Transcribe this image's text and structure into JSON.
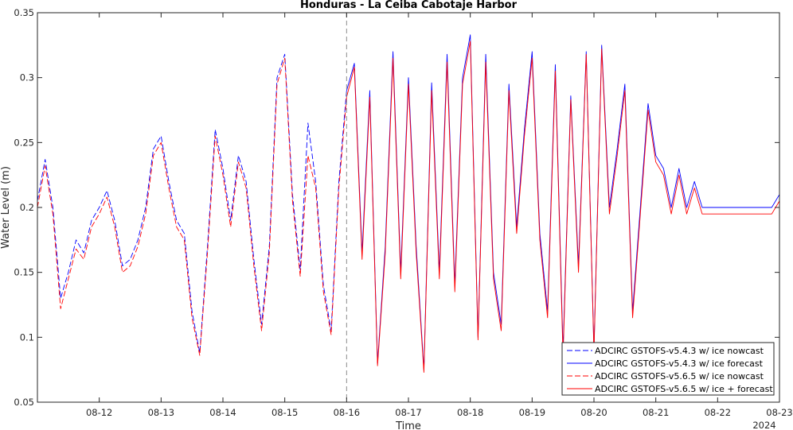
{
  "chart_data": {
    "type": "line",
    "title": "Honduras - La Ceiba Cabotaje Harbor",
    "xlabel": "Time",
    "ylabel": "Water Level (m)",
    "x_start": "2024-08-11 00:00",
    "x_end": "2024-08-23 00:00",
    "xlim": [
      "2024-08-11",
      "2024-08-23"
    ],
    "ylim": [
      0.05,
      0.35
    ],
    "x_ticks": [
      {
        "date": "2024-08-12",
        "label": "08-12"
      },
      {
        "date": "2024-08-13",
        "label": "08-13"
      },
      {
        "date": "2024-08-14",
        "label": "08-14"
      },
      {
        "date": "2024-08-15",
        "label": "08-15"
      },
      {
        "date": "2024-08-16",
        "label": "08-16"
      },
      {
        "date": "2024-08-17",
        "label": "08-17"
      },
      {
        "date": "2024-08-18",
        "label": "08-18"
      },
      {
        "date": "2024-08-19",
        "label": "08-19"
      },
      {
        "date": "2024-08-20",
        "label": "08-20"
      },
      {
        "date": "2024-08-21",
        "label": "08-21"
      },
      {
        "date": "2024-08-22",
        "label": "08-22"
      },
      {
        "date": "2024-08-23",
        "label": "08-23"
      }
    ],
    "x_year_label": "2024",
    "y_ticks": [
      0.05,
      0.1,
      0.15,
      0.2,
      0.25,
      0.3,
      0.35
    ],
    "y_tick_labels": [
      "0.05",
      "0.1",
      "0.15",
      "0.2",
      "0.25",
      "0.3",
      "0.35"
    ],
    "grid": false,
    "legend_location": "bottom-right",
    "forecast_start_marker": "2024-08-16 00:00",
    "series": [
      {
        "name": "ADCIRC GSTOFS-v5.4.3 w/ ice nowcast",
        "color": "#0000ff",
        "style": "dashed",
        "x": [
          "2024-08-11 00:00",
          "2024-08-11 03:00",
          "2024-08-11 06:00",
          "2024-08-11 09:00",
          "2024-08-11 12:00",
          "2024-08-11 15:00",
          "2024-08-11 18:00",
          "2024-08-11 21:00",
          "2024-08-12 00:00",
          "2024-08-12 03:00",
          "2024-08-12 06:00",
          "2024-08-12 09:00",
          "2024-08-12 12:00",
          "2024-08-12 15:00",
          "2024-08-12 18:00",
          "2024-08-12 21:00",
          "2024-08-13 00:00",
          "2024-08-13 03:00",
          "2024-08-13 06:00",
          "2024-08-13 09:00",
          "2024-08-13 12:00",
          "2024-08-13 15:00",
          "2024-08-13 18:00",
          "2024-08-13 21:00",
          "2024-08-14 00:00",
          "2024-08-14 03:00",
          "2024-08-14 06:00",
          "2024-08-14 09:00",
          "2024-08-14 12:00",
          "2024-08-14 15:00",
          "2024-08-14 18:00",
          "2024-08-14 21:00",
          "2024-08-15 00:00",
          "2024-08-15 03:00",
          "2024-08-15 06:00",
          "2024-08-15 09:00",
          "2024-08-15 12:00",
          "2024-08-15 15:00",
          "2024-08-15 18:00",
          "2024-08-15 21:00",
          "2024-08-16 00:00"
        ],
        "y": [
          0.205,
          0.237,
          0.2,
          0.13,
          0.15,
          0.175,
          0.165,
          0.19,
          0.2,
          0.213,
          0.19,
          0.155,
          0.16,
          0.175,
          0.2,
          0.245,
          0.255,
          0.22,
          0.19,
          0.18,
          0.12,
          0.088,
          0.17,
          0.26,
          0.23,
          0.19,
          0.24,
          0.22,
          0.16,
          0.11,
          0.17,
          0.3,
          0.318,
          0.21,
          0.152,
          0.265,
          0.22,
          0.14,
          0.105,
          0.22,
          0.29
        ]
      },
      {
        "name": "ADCIRC GSTOFS-v5.4.3 w/ ice forecast",
        "color": "#0000ff",
        "style": "solid",
        "x": [
          "2024-08-16 00:00",
          "2024-08-16 03:00",
          "2024-08-16 06:00",
          "2024-08-16 09:00",
          "2024-08-16 12:00",
          "2024-08-16 15:00",
          "2024-08-16 18:00",
          "2024-08-16 21:00",
          "2024-08-17 00:00",
          "2024-08-17 03:00",
          "2024-08-17 06:00",
          "2024-08-17 09:00",
          "2024-08-17 12:00",
          "2024-08-17 15:00",
          "2024-08-17 18:00",
          "2024-08-17 21:00",
          "2024-08-18 00:00",
          "2024-08-18 03:00",
          "2024-08-18 06:00",
          "2024-08-18 09:00",
          "2024-08-18 12:00",
          "2024-08-18 15:00",
          "2024-08-18 18:00",
          "2024-08-18 21:00",
          "2024-08-19 00:00",
          "2024-08-19 03:00",
          "2024-08-19 06:00",
          "2024-08-19 09:00",
          "2024-08-19 12:00",
          "2024-08-19 15:00",
          "2024-08-19 18:00",
          "2024-08-19 21:00",
          "2024-08-20 00:00",
          "2024-08-20 03:00",
          "2024-08-20 06:00",
          "2024-08-20 09:00",
          "2024-08-20 12:00",
          "2024-08-20 15:00",
          "2024-08-20 18:00",
          "2024-08-20 21:00",
          "2024-08-21 00:00",
          "2024-08-21 03:00",
          "2024-08-21 06:00",
          "2024-08-21 09:00",
          "2024-08-21 12:00",
          "2024-08-21 15:00",
          "2024-08-21 18:00",
          "2024-08-21 21:00",
          "2024-08-22 00:00",
          "2024-08-22 03:00",
          "2024-08-22 06:00",
          "2024-08-22 09:00",
          "2024-08-22 12:00",
          "2024-08-22 15:00",
          "2024-08-22 18:00",
          "2024-08-22 21:00",
          "2024-08-23 00:00"
        ],
        "y": [
          0.29,
          0.311,
          0.165,
          0.29,
          0.08,
          0.17,
          0.32,
          0.15,
          0.3,
          0.17,
          0.075,
          0.296,
          0.15,
          0.318,
          0.14,
          0.3,
          0.333,
          0.1,
          0.318,
          0.15,
          0.11,
          0.295,
          0.185,
          0.26,
          0.32,
          0.18,
          0.12,
          0.31,
          0.09,
          0.286,
          0.155,
          0.32,
          0.09,
          0.325,
          0.2,
          0.245,
          0.295,
          0.12,
          0.2,
          0.28,
          0.24,
          0.23,
          0.2,
          0.23,
          0.2,
          0.22,
          0.2,
          0.2,
          0.2,
          0.2,
          0.2,
          0.2,
          0.2,
          0.2,
          0.2,
          0.2,
          0.21
        ]
      },
      {
        "name": "ADCIRC GSTOFS-v5.6.5 w/ ice nowcast",
        "color": "#ff0000",
        "style": "dashed",
        "x": [
          "2024-08-11 00:00",
          "2024-08-11 03:00",
          "2024-08-11 06:00",
          "2024-08-11 09:00",
          "2024-08-11 12:00",
          "2024-08-11 15:00",
          "2024-08-11 18:00",
          "2024-08-11 21:00",
          "2024-08-12 00:00",
          "2024-08-12 03:00",
          "2024-08-12 06:00",
          "2024-08-12 09:00",
          "2024-08-12 12:00",
          "2024-08-12 15:00",
          "2024-08-12 18:00",
          "2024-08-12 21:00",
          "2024-08-13 00:00",
          "2024-08-13 03:00",
          "2024-08-13 06:00",
          "2024-08-13 09:00",
          "2024-08-13 12:00",
          "2024-08-13 15:00",
          "2024-08-13 18:00",
          "2024-08-13 21:00",
          "2024-08-14 00:00",
          "2024-08-14 03:00",
          "2024-08-14 06:00",
          "2024-08-14 09:00",
          "2024-08-14 12:00",
          "2024-08-14 15:00",
          "2024-08-14 18:00",
          "2024-08-14 21:00",
          "2024-08-15 00:00",
          "2024-08-15 03:00",
          "2024-08-15 06:00",
          "2024-08-15 09:00",
          "2024-08-15 12:00",
          "2024-08-15 15:00",
          "2024-08-15 18:00",
          "2024-08-15 21:00",
          "2024-08-16 00:00"
        ],
        "y": [
          0.2,
          0.232,
          0.195,
          0.122,
          0.145,
          0.168,
          0.16,
          0.185,
          0.195,
          0.208,
          0.185,
          0.15,
          0.155,
          0.17,
          0.195,
          0.24,
          0.25,
          0.215,
          0.185,
          0.175,
          0.115,
          0.086,
          0.165,
          0.255,
          0.225,
          0.185,
          0.235,
          0.215,
          0.155,
          0.105,
          0.165,
          0.295,
          0.315,
          0.205,
          0.147,
          0.24,
          0.215,
          0.135,
          0.102,
          0.215,
          0.285
        ]
      },
      {
        "name": "ADCIRC GSTOFS-v5.6.5 w/ ice + forecast",
        "color": "#ff0000",
        "style": "solid",
        "x": [
          "2024-08-16 00:00",
          "2024-08-16 03:00",
          "2024-08-16 06:00",
          "2024-08-16 09:00",
          "2024-08-16 12:00",
          "2024-08-16 15:00",
          "2024-08-16 18:00",
          "2024-08-16 21:00",
          "2024-08-17 00:00",
          "2024-08-17 03:00",
          "2024-08-17 06:00",
          "2024-08-17 09:00",
          "2024-08-17 12:00",
          "2024-08-17 15:00",
          "2024-08-17 18:00",
          "2024-08-17 21:00",
          "2024-08-18 00:00",
          "2024-08-18 03:00",
          "2024-08-18 06:00",
          "2024-08-18 09:00",
          "2024-08-18 12:00",
          "2024-08-18 15:00",
          "2024-08-18 18:00",
          "2024-08-18 21:00",
          "2024-08-19 00:00",
          "2024-08-19 03:00",
          "2024-08-19 06:00",
          "2024-08-19 09:00",
          "2024-08-19 12:00",
          "2024-08-19 15:00",
          "2024-08-19 18:00",
          "2024-08-19 21:00",
          "2024-08-20 00:00",
          "2024-08-20 03:00",
          "2024-08-20 06:00",
          "2024-08-20 09:00",
          "2024-08-20 12:00",
          "2024-08-20 15:00",
          "2024-08-20 18:00",
          "2024-08-20 21:00",
          "2024-08-21 00:00",
          "2024-08-21 03:00",
          "2024-08-21 06:00",
          "2024-08-21 09:00",
          "2024-08-21 12:00",
          "2024-08-21 15:00",
          "2024-08-21 18:00",
          "2024-08-21 21:00",
          "2024-08-22 00:00",
          "2024-08-22 03:00",
          "2024-08-22 06:00",
          "2024-08-22 09:00",
          "2024-08-22 12:00",
          "2024-08-22 15:00",
          "2024-08-22 18:00",
          "2024-08-22 21:00",
          "2024-08-23 00:00"
        ],
        "y": [
          0.285,
          0.308,
          0.16,
          0.285,
          0.078,
          0.165,
          0.315,
          0.145,
          0.295,
          0.165,
          0.073,
          0.29,
          0.145,
          0.312,
          0.135,
          0.295,
          0.328,
          0.098,
          0.312,
          0.145,
          0.105,
          0.29,
          0.18,
          0.255,
          0.315,
          0.175,
          0.115,
          0.305,
          0.085,
          0.283,
          0.15,
          0.318,
          0.088,
          0.322,
          0.195,
          0.24,
          0.29,
          0.115,
          0.195,
          0.275,
          0.235,
          0.225,
          0.195,
          0.225,
          0.195,
          0.215,
          0.195,
          0.195,
          0.195,
          0.195,
          0.195,
          0.195,
          0.195,
          0.195,
          0.195,
          0.195,
          0.205
        ]
      }
    ]
  }
}
